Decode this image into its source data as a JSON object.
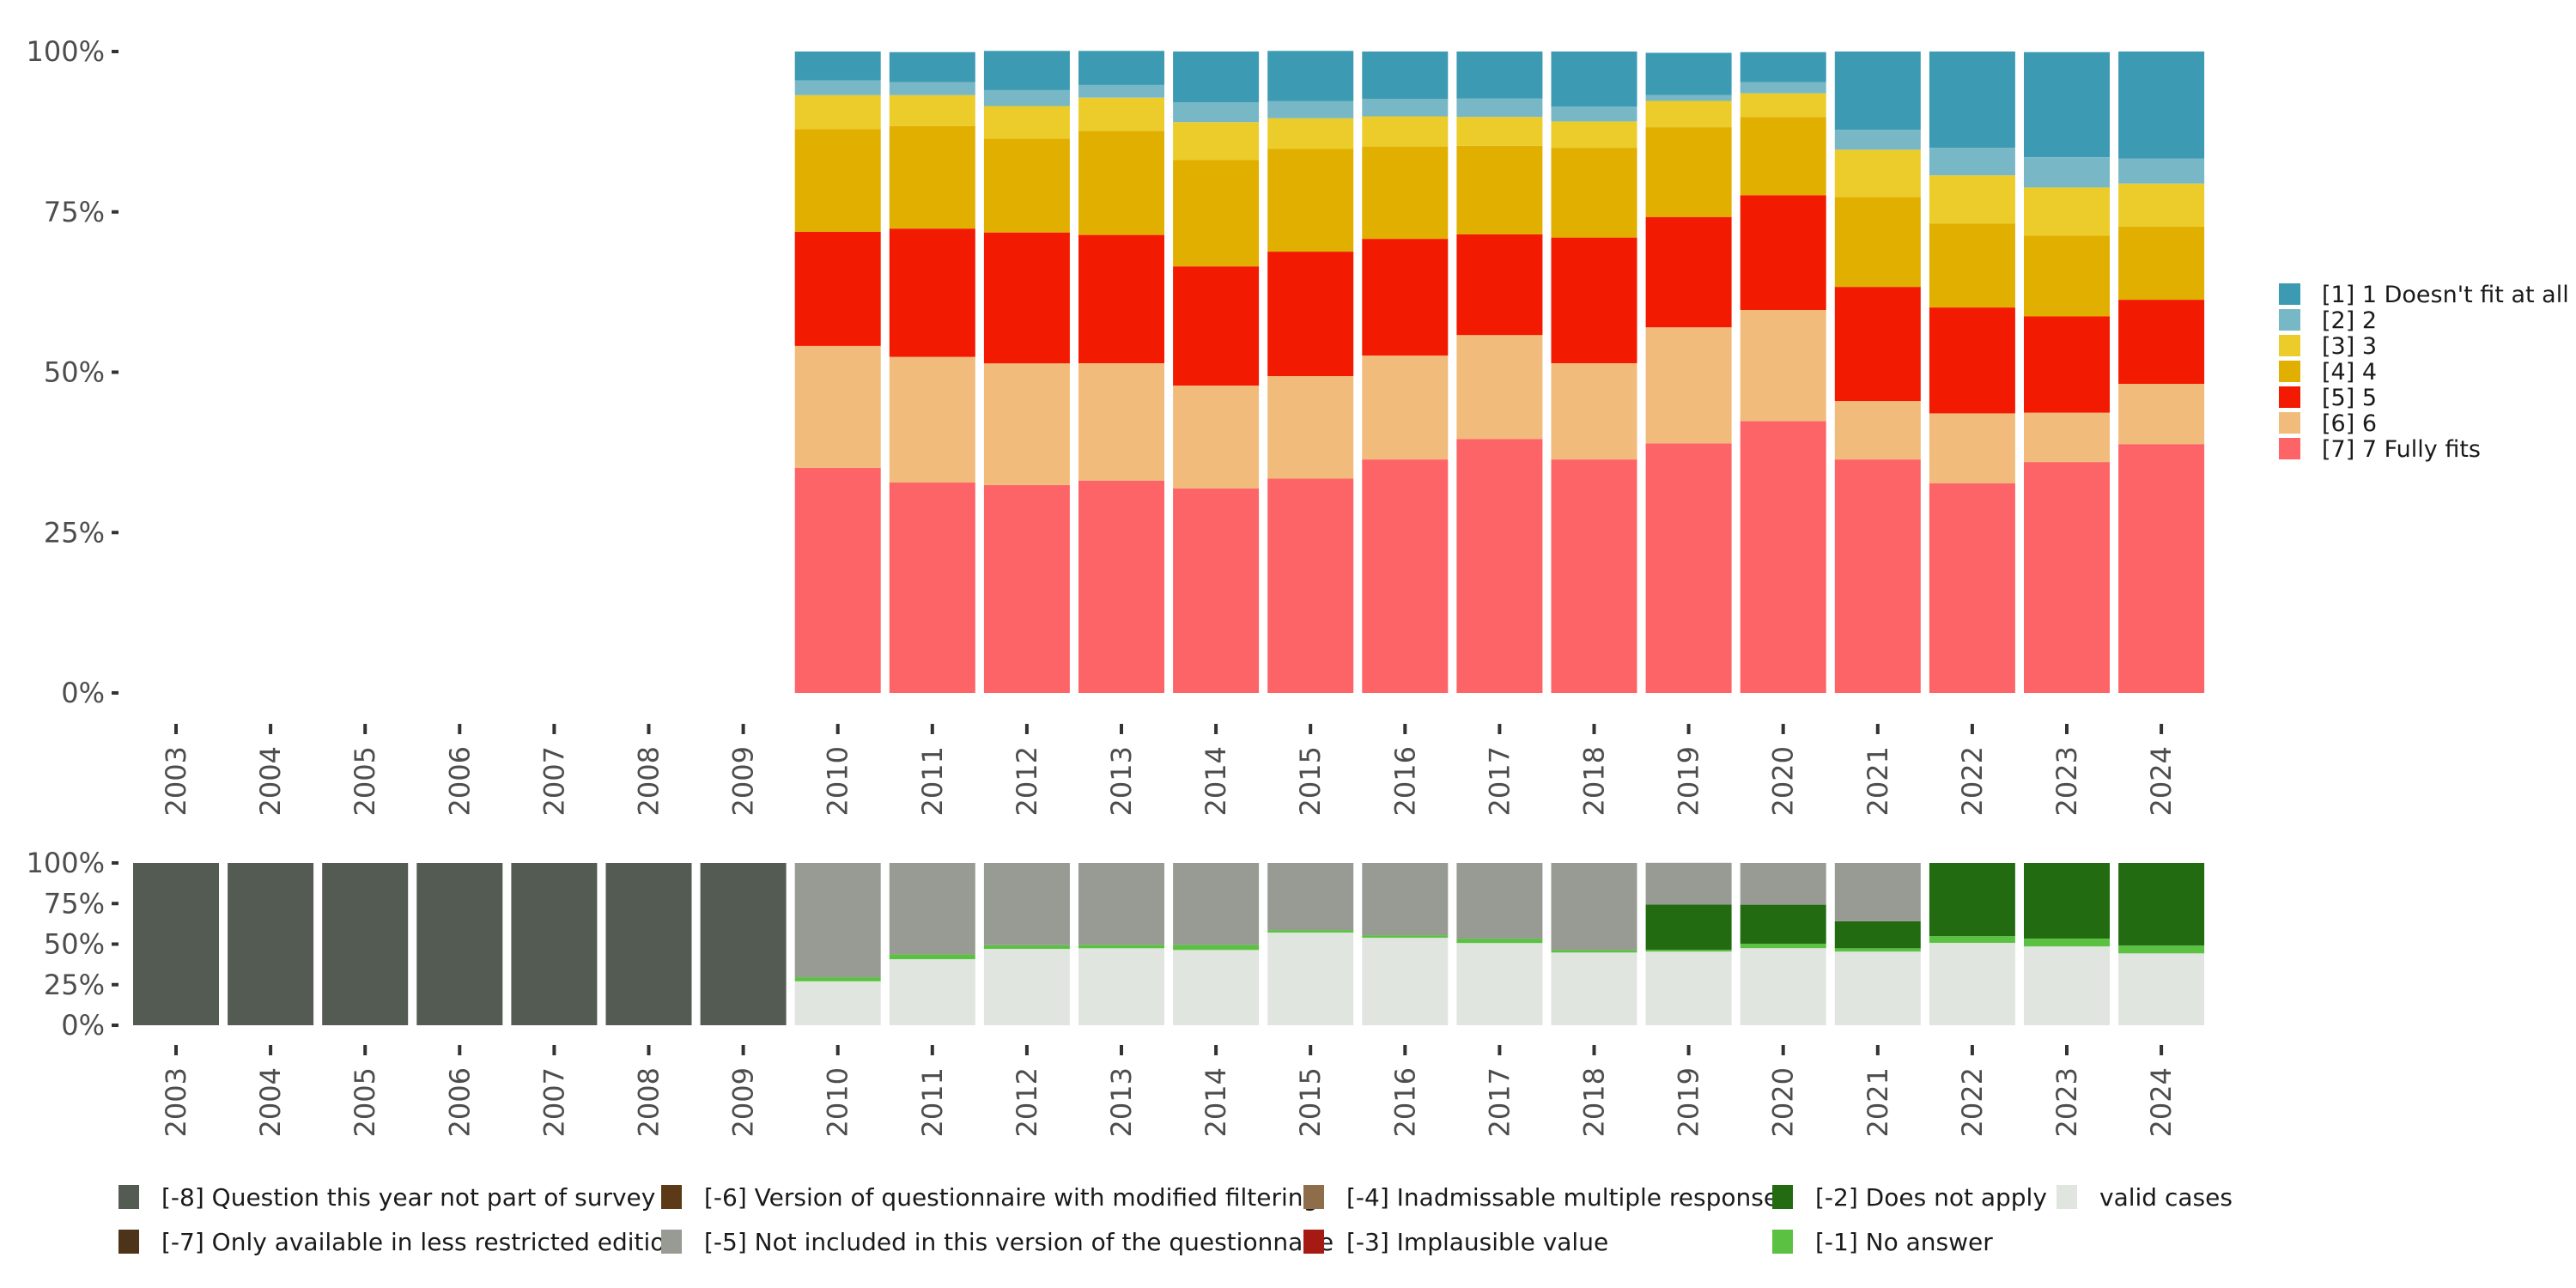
{
  "chart_data": [
    {
      "type": "bar",
      "stacked": true,
      "percent": true,
      "title": "",
      "xlabel": "",
      "ylabel": "",
      "ylim": [
        0,
        100
      ],
      "yticks": [
        "0%",
        "25%",
        "50%",
        "75%",
        "100%"
      ],
      "categories": [
        "2003",
        "2004",
        "2005",
        "2006",
        "2007",
        "2008",
        "2009",
        "2010",
        "2011",
        "2012",
        "2013",
        "2014",
        "2015",
        "2016",
        "2017",
        "2018",
        "2019",
        "2020",
        "2021",
        "2022",
        "2023",
        "2024"
      ],
      "legend_position": "right",
      "stack_order_bottom_to_top": [
        "[7] 7 Fully fits",
        "[6] 6",
        "[5] 5",
        "[4] 4",
        "[3] 3",
        "[2] 2",
        "[1] 1 Doesn't fit at all"
      ],
      "series": [
        {
          "name": "[1] 1 Doesn't fit at all",
          "color": "#3C9AB2",
          "values": [
            null,
            null,
            null,
            null,
            null,
            null,
            null,
            4.5,
            4.7,
            6.1,
            5.3,
            7.9,
            7.8,
            7.4,
            7.3,
            8.6,
            6.6,
            4.7,
            12.2,
            15.0,
            16.4,
            16.7
          ]
        },
        {
          "name": "[2] 2",
          "color": "#78B7C5",
          "values": [
            null,
            null,
            null,
            null,
            null,
            null,
            null,
            2.3,
            2.0,
            2.5,
            2.0,
            3.1,
            2.7,
            2.7,
            2.9,
            2.3,
            0.9,
            1.7,
            3.1,
            4.3,
            4.7,
            3.9
          ]
        },
        {
          "name": "[3] 3",
          "color": "#EBCC2A",
          "values": [
            null,
            null,
            null,
            null,
            null,
            null,
            null,
            5.3,
            4.8,
            5.1,
            5.2,
            5.9,
            4.8,
            4.7,
            4.5,
            4.1,
            4.1,
            3.7,
            7.4,
            7.5,
            7.5,
            6.7
          ]
        },
        {
          "name": "[4] 4",
          "color": "#E1AF00",
          "values": [
            null,
            null,
            null,
            null,
            null,
            null,
            null,
            16.0,
            16.0,
            14.6,
            16.2,
            16.6,
            16.0,
            14.4,
            13.8,
            14.0,
            14.0,
            12.2,
            14.0,
            13.1,
            12.6,
            11.4
          ]
        },
        {
          "name": "[5] 5",
          "color": "#F21A00",
          "values": [
            null,
            null,
            null,
            null,
            null,
            null,
            null,
            17.8,
            20.0,
            20.4,
            20.0,
            18.6,
            19.4,
            18.2,
            15.7,
            19.6,
            17.2,
            17.9,
            17.8,
            16.5,
            15.0,
            13.1
          ]
        },
        {
          "name": "[6] 6",
          "color": "#F1BB7B",
          "values": [
            null,
            null,
            null,
            null,
            null,
            null,
            null,
            19.0,
            19.6,
            19.0,
            18.3,
            16.0,
            16.0,
            16.2,
            16.2,
            15.0,
            18.1,
            17.3,
            9.1,
            10.9,
            7.7,
            9.4
          ]
        },
        {
          "name": "[7] 7 Fully fits",
          "color": "#FD6467",
          "values": [
            null,
            null,
            null,
            null,
            null,
            null,
            null,
            35.1,
            32.8,
            32.4,
            33.1,
            31.9,
            33.4,
            36.4,
            39.6,
            36.4,
            38.9,
            42.4,
            36.4,
            32.7,
            36.0,
            38.8
          ]
        }
      ]
    },
    {
      "type": "bar",
      "stacked": true,
      "percent": true,
      "title": "",
      "xlabel": "",
      "ylabel": "",
      "ylim": [
        0,
        100
      ],
      "yticks": [
        "0%",
        "25%",
        "50%",
        "75%",
        "100%"
      ],
      "categories": [
        "2003",
        "2004",
        "2005",
        "2006",
        "2007",
        "2008",
        "2009",
        "2010",
        "2011",
        "2012",
        "2013",
        "2014",
        "2015",
        "2016",
        "2017",
        "2018",
        "2019",
        "2020",
        "2021",
        "2022",
        "2023",
        "2024"
      ],
      "legend_position": "bottom",
      "stack_order_bottom_to_top": [
        "valid cases",
        "[-1] No answer",
        "[-2] Does not apply",
        "[-3] Implausible value",
        "[-4] Inadmissable multiple response",
        "[-5] Not included in this version of the questionnaire",
        "[-6] Version of questionnaire with modified filtering",
        "[-7] Only available in less restricted edition",
        "[-8] Question this year not part of survey"
      ],
      "series": [
        {
          "name": "[-8] Question this year not part of survey",
          "color": "#545B53",
          "values": [
            100,
            100,
            100,
            100,
            100,
            100,
            100,
            0,
            0,
            0,
            0,
            0,
            0,
            0,
            0,
            0,
            0,
            0,
            0,
            0,
            0,
            0
          ]
        },
        {
          "name": "[-7] Only available in less restricted edition",
          "color": "#4D331A",
          "values": [
            0,
            0,
            0,
            0,
            0,
            0,
            0,
            0,
            0,
            0,
            0,
            0,
            0,
            0,
            0,
            0,
            0,
            0,
            0,
            0,
            0,
            0
          ]
        },
        {
          "name": "[-6] Version of questionnaire with modified filtering",
          "color": "#5C3A18",
          "values": [
            0,
            0,
            0,
            0,
            0,
            0,
            0,
            0,
            0,
            0,
            0,
            0,
            0,
            0,
            0,
            0,
            0,
            0,
            0,
            0,
            0,
            0
          ]
        },
        {
          "name": "[-5] Not included in this version of the questionnaire",
          "color": "#979B94",
          "values": [
            0,
            0,
            0,
            0,
            0,
            0,
            0,
            70.4,
            56.3,
            50.7,
            50.4,
            50.4,
            41.3,
            44.5,
            46.6,
            53.6,
            25.7,
            25.7,
            35.9,
            0,
            0,
            0
          ]
        },
        {
          "name": "[-4] Inadmissable multiple response",
          "color": "#8E6D4B",
          "values": [
            0,
            0,
            0,
            0,
            0,
            0,
            0,
            0,
            0,
            0,
            0,
            0,
            0,
            0,
            0,
            0,
            0,
            0,
            0,
            0,
            0,
            0
          ]
        },
        {
          "name": "[-3] Implausible value",
          "color": "#A51B14",
          "values": [
            0,
            0,
            0,
            0,
            0,
            0,
            0,
            0,
            0,
            0,
            0,
            0,
            0,
            0,
            0,
            0,
            0,
            0,
            0,
            0,
            0,
            0
          ]
        },
        {
          "name": "[-2] Does not apply",
          "color": "#226B11",
          "values": [
            0,
            0,
            0,
            0,
            0,
            0,
            0,
            0,
            0,
            0,
            0,
            0,
            0,
            0,
            0,
            0,
            27.9,
            24.1,
            16.6,
            45.0,
            46.6,
            50.9
          ]
        },
        {
          "name": "[-1] No answer",
          "color": "#5BC142",
          "values": [
            0,
            0,
            0,
            0,
            0,
            0,
            0,
            2.5,
            3.0,
            2.3,
            2.1,
            3.2,
            1.6,
            1.6,
            2.7,
            1.6,
            1.1,
            2.7,
            2.1,
            4.3,
            4.8,
            4.8
          ]
        },
        {
          "name": "valid cases",
          "color": "#E0E5E0",
          "values": [
            0,
            0,
            0,
            0,
            0,
            0,
            0,
            27.1,
            40.7,
            47.0,
            47.5,
            46.4,
            57.1,
            53.9,
            50.7,
            44.8,
            45.4,
            47.5,
            45.4,
            50.7,
            48.6,
            44.3
          ]
        }
      ],
      "legend_rows": [
        [
          "[-8] Question this year not part of survey",
          "[-6] Version of questionnaire with modified filtering",
          "[-4] Inadmissable multiple response",
          "[-2] Does not apply",
          "valid cases"
        ],
        [
          "[-7] Only available in less restricted edition",
          "[-5] Not included in this version of the questionnaire",
          "[-3] Implausible value",
          "[-1] No answer"
        ]
      ]
    }
  ]
}
